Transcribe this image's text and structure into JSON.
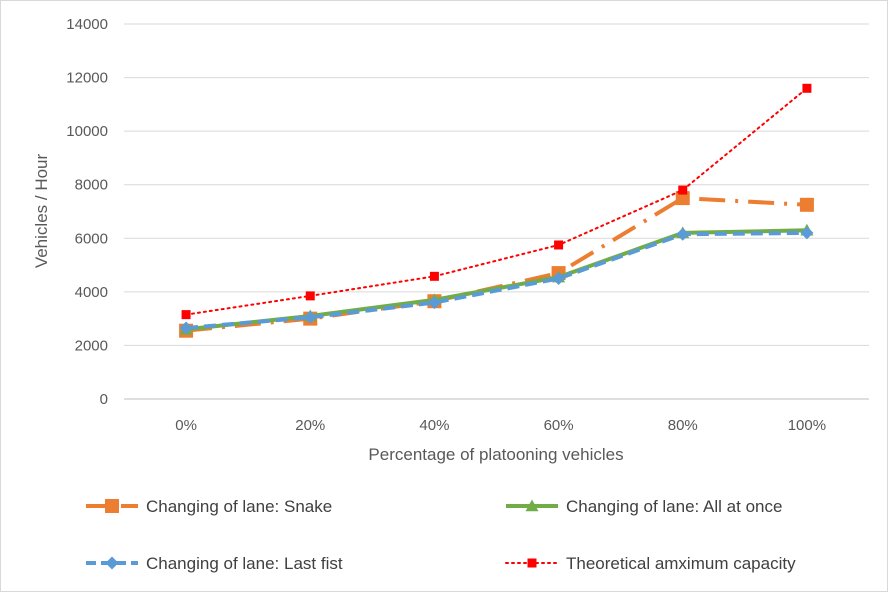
{
  "chart_data": {
    "type": "line",
    "title": "",
    "xlabel": "Percentage of platooning vehicles",
    "ylabel": "Vehicles / Hour",
    "categories": [
      "0%",
      "20%",
      "40%",
      "60%",
      "80%",
      "100%"
    ],
    "ylim": [
      0,
      14000
    ],
    "yticks": [
      "0",
      "2000",
      "4000",
      "6000",
      "8000",
      "10000",
      "12000",
      "14000"
    ],
    "grid": "horizontal",
    "legend_position": "bottom",
    "series": [
      {
        "name": "Changing of lane: Snake",
        "values": [
          2550,
          3000,
          3650,
          4700,
          7500,
          7250
        ],
        "color": "#ed7d31",
        "line_style": "long-dash-dot",
        "marker": "square"
      },
      {
        "name": "Changing of lane: All at once",
        "values": [
          2600,
          3100,
          3700,
          4550,
          6200,
          6300
        ],
        "color": "#70ad47",
        "line_style": "solid",
        "marker": "triangle"
      },
      {
        "name": "Changing of lane: Last fist",
        "values": [
          2650,
          3050,
          3600,
          4500,
          6150,
          6200
        ],
        "color": "#5b9bd5",
        "line_style": "dashed",
        "marker": "diamond"
      },
      {
        "name": "Theoretical amximum capacity",
        "values": [
          3150,
          3850,
          4580,
          5750,
          7800,
          11600
        ],
        "color": "#ff0000",
        "line_style": "dotted",
        "marker": "square"
      }
    ]
  }
}
